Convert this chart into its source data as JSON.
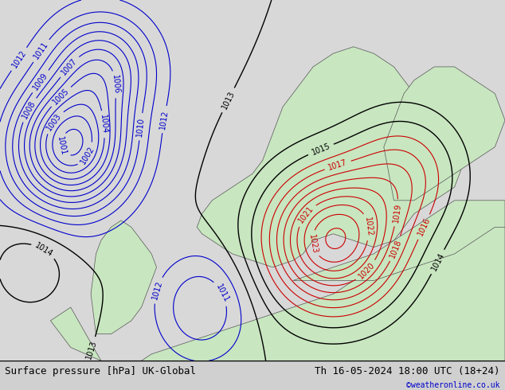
{
  "title_left": "Surface pressure [hPa] UK-Global",
  "title_right": "Th 16-05-2024 18:00 UTC (18+24)",
  "copyright": "©weatheronline.co.uk",
  "bg_color": "#d0d0d0",
  "land_color": "#c8e6c0",
  "sea_color": "#d8d8d8",
  "red_contour_color": "#cc0000",
  "blue_contour_color": "#0000cc",
  "black_contour_color": "#000000",
  "footer_bg": "#e8e8e8",
  "label_fontsize": 7,
  "footer_fontsize": 9,
  "figsize": [
    6.34,
    4.9
  ],
  "dpi": 100
}
